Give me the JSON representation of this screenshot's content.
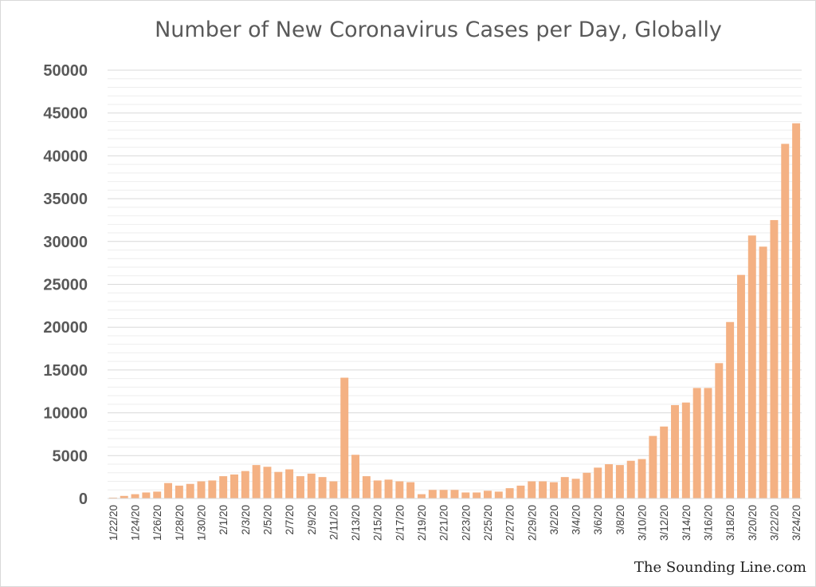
{
  "chart_data": {
    "type": "bar",
    "title": "Number of New Coronavirus Cases per Day, Globally",
    "xlabel": "",
    "ylabel": "",
    "ylim": [
      0,
      50000
    ],
    "yticks": [
      0,
      5000,
      10000,
      15000,
      20000,
      25000,
      30000,
      35000,
      40000,
      45000,
      50000
    ],
    "grid": true,
    "bar_color": "#f4b183",
    "categories": [
      "1/22/20",
      "1/23/20",
      "1/24/20",
      "1/25/20",
      "1/26/20",
      "1/27/20",
      "1/28/20",
      "1/29/20",
      "1/30/20",
      "1/31/20",
      "2/1/20",
      "2/2/20",
      "2/3/20",
      "2/4/20",
      "2/5/20",
      "2/6/20",
      "2/7/20",
      "2/8/20",
      "2/9/20",
      "2/10/20",
      "2/11/20",
      "2/12/20",
      "2/13/20",
      "2/14/20",
      "2/15/20",
      "2/16/20",
      "2/17/20",
      "2/18/20",
      "2/19/20",
      "2/20/20",
      "2/21/20",
      "2/22/20",
      "2/23/20",
      "2/24/20",
      "2/25/20",
      "2/26/20",
      "2/27/20",
      "2/28/20",
      "2/29/20",
      "3/1/20",
      "3/2/20",
      "3/3/20",
      "3/4/20",
      "3/5/20",
      "3/6/20",
      "3/7/20",
      "3/8/20",
      "3/9/20",
      "3/10/20",
      "3/11/20",
      "3/12/20",
      "3/13/20",
      "3/14/20",
      "3/15/20",
      "3/16/20",
      "3/17/20",
      "3/18/20",
      "3/19/20",
      "3/20/20",
      "3/21/20",
      "3/22/20",
      "3/23/20",
      "3/24/20"
    ],
    "tick_labels": [
      "1/22/20",
      "1/24/20",
      "1/26/20",
      "1/28/20",
      "1/30/20",
      "2/1/20",
      "2/3/20",
      "2/5/20",
      "2/7/20",
      "2/9/20",
      "2/11/20",
      "2/13/20",
      "2/15/20",
      "2/17/20",
      "2/19/20",
      "2/21/20",
      "2/23/20",
      "2/25/20",
      "2/27/20",
      "2/29/20",
      "3/2/20",
      "3/4/20",
      "3/6/20",
      "3/8/20",
      "3/10/20",
      "3/12/20",
      "3/14/20",
      "3/16/20",
      "3/18/20",
      "3/20/20",
      "3/22/20",
      "3/24/20"
    ],
    "values": [
      100,
      300,
      500,
      700,
      800,
      1800,
      1500,
      1700,
      2000,
      2100,
      2600,
      2800,
      3200,
      3900,
      3700,
      3100,
      3400,
      2600,
      2900,
      2500,
      2000,
      14100,
      5100,
      2600,
      2100,
      2200,
      2000,
      1900,
      500,
      1000,
      1000,
      1000,
      700,
      700,
      900,
      800,
      1200,
      1500,
      2000,
      2000,
      1900,
      2500,
      2300,
      3000,
      3600,
      4000,
      3900,
      4400,
      4600,
      7300,
      8400,
      10900,
      11200,
      12900,
      12900,
      15800,
      20600,
      26100,
      30700,
      29400,
      32500,
      41400,
      43800
    ]
  },
  "watermark": "The Sounding Line.com"
}
